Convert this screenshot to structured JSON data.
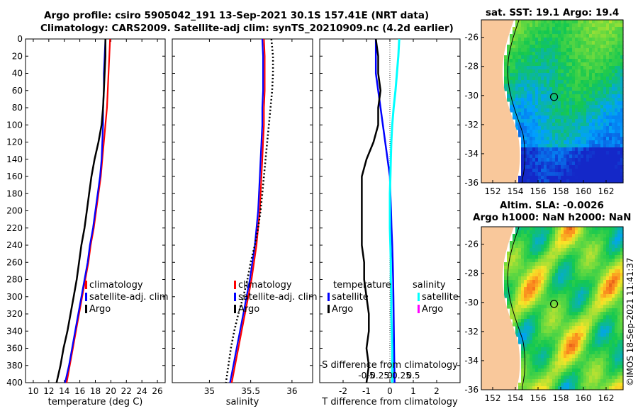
{
  "titles": {
    "line1": "Argo profile: csiro 5905042_191 13-Sep-2021 30.1S 157.41E (NRT data)",
    "line2": "Climatology: CARS2009. Satellite-adj clim: synTS_20210909.nc (4.2d earlier)",
    "sst": "sat. SST: 19.1 Argo: 19.4",
    "sla1": "Altim. SLA: -0.0026",
    "sla2": "Argo h1000: NaN h2000: NaN"
  },
  "watermark": "©IMOS 18-Sep-2021 11:41:37",
  "colors": {
    "climatology": "#ff0000",
    "satellite": "#0000ff",
    "argo": "#000000",
    "sal_satellite": "#00ffff",
    "sal_argo": "#ff00ff",
    "land": "#f9c89b"
  },
  "chart_data": [
    {
      "id": "temperature",
      "type": "line",
      "xlabel": "temperature (deg C)",
      "ylabel": "",
      "xlim": [
        9,
        27
      ],
      "ylim": [
        400,
        0
      ],
      "xticks": [
        "10",
        "12",
        "14",
        "16",
        "18",
        "20",
        "22",
        "24",
        "26"
      ],
      "yticks": [
        "0",
        "20",
        "40",
        "60",
        "80",
        "100",
        "120",
        "140",
        "160",
        "180",
        "200",
        "220",
        "240",
        "260",
        "280",
        "300",
        "320",
        "340",
        "360",
        "380",
        "400"
      ],
      "depth": [
        0,
        20,
        40,
        60,
        80,
        100,
        120,
        140,
        160,
        180,
        200,
        220,
        240,
        260,
        280,
        300,
        320,
        340,
        360,
        380,
        400
      ],
      "series": [
        {
          "name": "climatology",
          "values": [
            19.9,
            19.8,
            19.7,
            19.6,
            19.5,
            19.3,
            19.1,
            18.9,
            18.7,
            18.4,
            18.1,
            17.8,
            17.4,
            17.1,
            16.7,
            16.3,
            15.9,
            15.5,
            15.1,
            14.7,
            14.3
          ]
        },
        {
          "name": "satellite-adj. clim",
          "values": [
            19.3,
            19.2,
            19.1,
            19.1,
            19.0,
            19.0,
            18.9,
            18.8,
            18.6,
            18.3,
            18.0,
            17.7,
            17.3,
            17.0,
            16.6,
            16.2,
            15.8,
            15.4,
            15.0,
            14.6,
            14.1
          ]
        },
        {
          "name": "Argo",
          "values": [
            19.3,
            19.3,
            19.2,
            19.1,
            19.0,
            18.8,
            18.4,
            17.9,
            17.5,
            17.2,
            16.9,
            16.6,
            16.2,
            15.9,
            15.6,
            15.2,
            14.8,
            14.4,
            13.9,
            13.5,
            13.0
          ]
        }
      ],
      "legend": [
        "climatology",
        "satellite-adj. clim",
        "Argo"
      ]
    },
    {
      "id": "salinity",
      "type": "line",
      "xlabel": "salinity",
      "ylabel": "",
      "xlim": [
        34.55,
        36.25
      ],
      "ylim": [
        400,
        0
      ],
      "xticks": [
        "35",
        "35.5",
        "36"
      ],
      "depth": [
        0,
        20,
        40,
        60,
        80,
        100,
        120,
        140,
        160,
        180,
        200,
        220,
        240,
        260,
        280,
        300,
        320,
        340,
        360,
        380,
        400
      ],
      "series": [
        {
          "name": "climatology",
          "values": [
            35.66,
            35.67,
            35.67,
            35.67,
            35.66,
            35.66,
            35.65,
            35.64,
            35.63,
            35.62,
            35.61,
            35.59,
            35.57,
            35.54,
            35.51,
            35.47,
            35.43,
            35.39,
            35.35,
            35.31,
            35.27
          ]
        },
        {
          "name": "satellite-adj. clim",
          "values": [
            35.64,
            35.65,
            35.65,
            35.65,
            35.64,
            35.64,
            35.63,
            35.62,
            35.61,
            35.6,
            35.59,
            35.57,
            35.55,
            35.52,
            35.49,
            35.45,
            35.41,
            35.37,
            35.33,
            35.29,
            35.25
          ]
        },
        {
          "name": "Argo",
          "values": [
            35.75,
            35.77,
            35.77,
            35.76,
            35.74,
            35.72,
            35.7,
            35.68,
            35.66,
            35.64,
            35.62,
            35.59,
            35.55,
            35.5,
            35.46,
            35.41,
            35.35,
            35.3,
            35.26,
            35.23,
            35.2
          ]
        }
      ],
      "legend": [
        "climatology",
        "satellite-adj. clim",
        "Argo"
      ]
    },
    {
      "id": "difference",
      "type": "line",
      "xlabel": "T difference from climatology",
      "top_label": "S difference from climatology",
      "xlim": [
        -3,
        3
      ],
      "ylim": [
        400,
        0
      ],
      "xticks": [
        "-2",
        "-1",
        "0",
        "1",
        "2"
      ],
      "s_xticks": [
        "-0.5",
        "-0.25",
        "0",
        "0.25",
        "0.5"
      ],
      "depth": [
        0,
        20,
        40,
        60,
        80,
        100,
        120,
        140,
        160,
        180,
        200,
        220,
        240,
        260,
        280,
        300,
        320,
        340,
        360,
        380,
        400
      ],
      "series": [
        {
          "name": "temperature satellite",
          "values": [
            -0.6,
            -0.6,
            -0.6,
            -0.5,
            -0.4,
            -0.3,
            -0.2,
            -0.1,
            0.0,
            0.02,
            0.05,
            0.07,
            0.1,
            0.12,
            0.14,
            0.15,
            0.16,
            0.17,
            0.18,
            0.19,
            0.2
          ]
        },
        {
          "name": "temperature Argo",
          "values": [
            -0.6,
            -0.5,
            -0.5,
            -0.4,
            -0.5,
            -0.5,
            -0.7,
            -1.0,
            -1.2,
            -1.2,
            -1.2,
            -1.2,
            -1.2,
            -1.1,
            -1.1,
            -1.0,
            -0.9,
            -0.9,
            -1.0,
            -0.9,
            -1.0
          ]
        },
        {
          "name": "salinity satellite",
          "values": [
            0.2,
            0.18,
            0.15,
            0.12,
            0.08,
            0.05,
            0.03,
            0.02,
            0.01,
            0.0,
            0.0,
            0.0,
            0.01,
            0.02,
            0.02,
            0.03,
            0.03,
            0.04,
            0.05,
            0.05,
            0.05
          ]
        }
      ],
      "legend_temperature_title": "temperature",
      "legend_salinity_title": "salinity",
      "legend_temperature": [
        "satellite",
        "Argo"
      ],
      "legend_salinity": [
        "satellite",
        "Argo"
      ]
    },
    {
      "id": "sst_map",
      "type": "heatmap",
      "title": "sat. SST: 19.1 Argo: 19.4",
      "xticks": [
        "152",
        "154",
        "156",
        "158",
        "160",
        "162"
      ],
      "yticks": [
        "-26",
        "-28",
        "-30",
        "-32",
        "-34",
        "-36"
      ],
      "xlim": [
        151,
        163.5
      ],
      "ylim": [
        -36,
        -24.8
      ],
      "argo_position": {
        "lon": 157.41,
        "lat": -30.1
      }
    },
    {
      "id": "sla_map",
      "type": "heatmap",
      "title": "Altim. SLA: -0.0026 / Argo h1000: NaN h2000: NaN",
      "xticks": [
        "152",
        "154",
        "156",
        "158",
        "160",
        "162"
      ],
      "yticks": [
        "-26",
        "-28",
        "-30",
        "-32",
        "-34",
        "-36"
      ],
      "xlim": [
        151,
        163.5
      ],
      "ylim": [
        -36,
        -24.8
      ],
      "argo_position": {
        "lon": 157.41,
        "lat": -30.1
      }
    }
  ]
}
